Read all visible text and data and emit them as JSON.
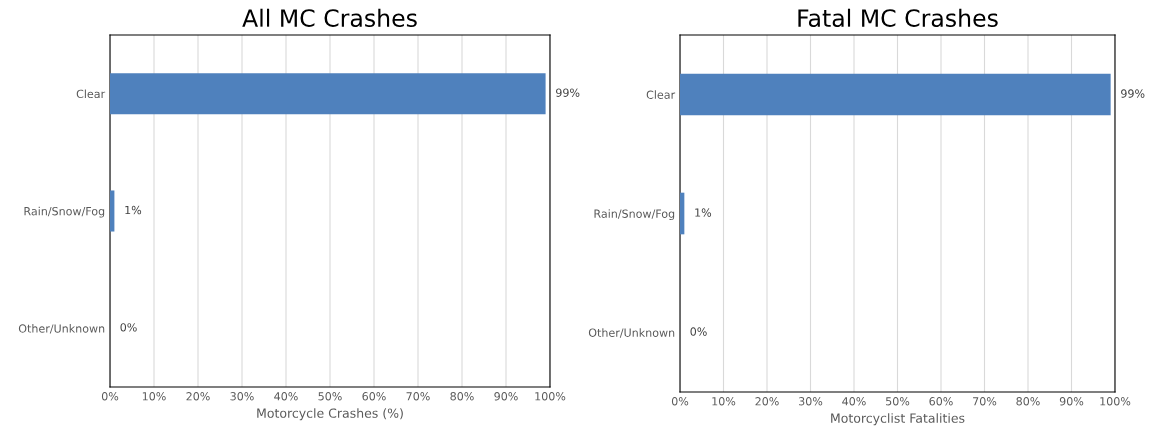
{
  "chart_data": [
    {
      "type": "bar",
      "orientation": "horizontal",
      "title": "All MC Crashes",
      "xlabel": "Motorcycle Crashes (%)",
      "categories": [
        "Clear",
        "Rain/Snow/Fog",
        "Other/Unknown"
      ],
      "values": [
        99,
        1,
        0
      ],
      "value_labels": [
        "99%",
        "1%",
        "0%"
      ],
      "color": "#4f81bd",
      "xlim": [
        0,
        100
      ],
      "xticks": [
        {
          "value": 0,
          "label": "0%"
        },
        {
          "value": 10,
          "label": "10%"
        },
        {
          "value": 20,
          "label": "20%"
        },
        {
          "value": 30,
          "label": "30%"
        },
        {
          "value": 40,
          "label": "40%"
        },
        {
          "value": 50,
          "label": "50%"
        },
        {
          "value": 60,
          "label": "60%"
        },
        {
          "value": 70,
          "label": "70%"
        },
        {
          "value": 80,
          "label": "80%"
        },
        {
          "value": 90,
          "label": "90%"
        },
        {
          "value": 100,
          "label": "100%"
        }
      ],
      "grid": "x"
    },
    {
      "type": "bar",
      "orientation": "horizontal",
      "title": "Fatal MC Crashes",
      "xlabel": "Motorcyclist Fatalities",
      "categories": [
        "Clear",
        "Rain/Snow/Fog",
        "Other/Unknown"
      ],
      "values": [
        99,
        1,
        0
      ],
      "value_labels": [
        "99%",
        "1%",
        "0%"
      ],
      "color": "#4f81bd",
      "xlim": [
        0,
        100
      ],
      "xticks": [
        {
          "value": 0,
          "label": "0%"
        },
        {
          "value": 10,
          "label": "10%"
        },
        {
          "value": 20,
          "label": "20%"
        },
        {
          "value": 30,
          "label": "30%"
        },
        {
          "value": 40,
          "label": "40%"
        },
        {
          "value": 50,
          "label": "50%"
        },
        {
          "value": 60,
          "label": "60%"
        },
        {
          "value": 70,
          "label": "70%"
        },
        {
          "value": 80,
          "label": "80%"
        },
        {
          "value": 90,
          "label": "90%"
        },
        {
          "value": 100,
          "label": "100%"
        }
      ],
      "grid": "x"
    }
  ]
}
